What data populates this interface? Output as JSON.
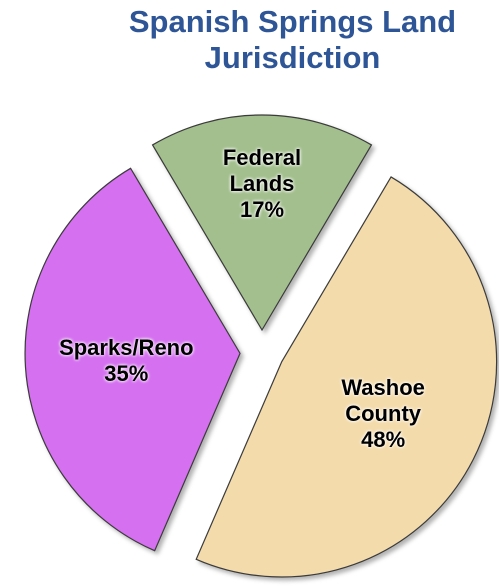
{
  "chart_data": {
    "type": "pie",
    "title": "Spanish Springs Land Jurisdiction",
    "categories": [
      "Federal Lands",
      "Washoe County",
      "Sparks/Reno"
    ],
    "values": [
      17,
      48,
      35
    ],
    "value_labels": [
      "17%",
      "48%",
      "35%"
    ],
    "colors": [
      "#a3bf8e",
      "#f3dbab",
      "#d56ff0"
    ]
  }
}
